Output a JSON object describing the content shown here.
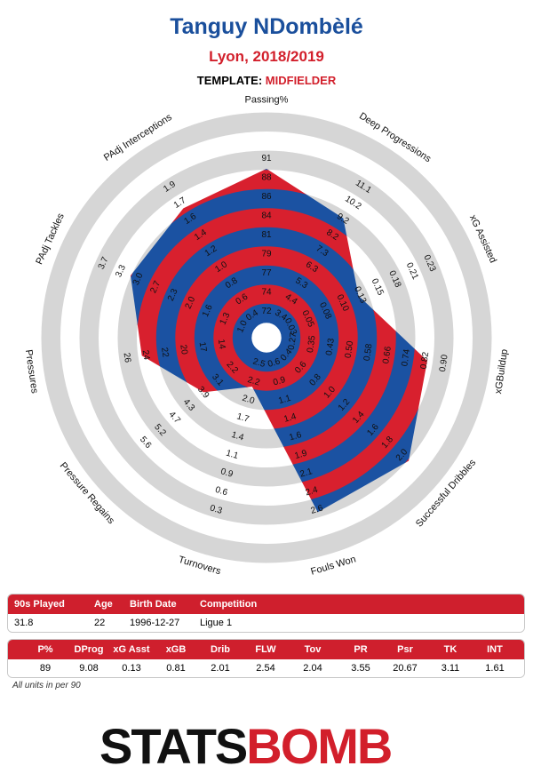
{
  "header": {
    "player_name": "Tanguy NDombèlé",
    "team_season": "Lyon, 2018/2019",
    "template_label": "TEMPLATE:",
    "template_value": "MIDFIELDER"
  },
  "chart_data": {
    "type": "radar",
    "axes": [
      {
        "name": "Passing%",
        "ticks": [
          "72",
          "74",
          "77",
          "79",
          "81",
          "84",
          "86",
          "88",
          "91"
        ],
        "value": 89,
        "range": [
          72,
          91
        ]
      },
      {
        "name": "Deep Progressions",
        "ticks": [
          "3.4",
          "4.4",
          "5.3",
          "6.3",
          "7.3",
          "8.2",
          "9.2",
          "10.2",
          "11.1"
        ],
        "value": 9.08,
        "range": [
          3.4,
          11.1
        ]
      },
      {
        "name": "xG Assisted",
        "ticks": [
          "0.03",
          "0.05",
          "0.08",
          "0.10",
          "0.13",
          "0.15",
          "0.18",
          "0.21",
          "0.23"
        ],
        "value": 0.13,
        "range": [
          0.03,
          0.23
        ]
      },
      {
        "name": "xGBuildup",
        "ticks": [
          "0.27",
          "0.35",
          "0.43",
          "0.50",
          "0.58",
          "0.66",
          "0.74",
          "0.82",
          "0.90"
        ],
        "value": 0.81,
        "range": [
          0.27,
          0.9
        ]
      },
      {
        "name": "Successful Dribbles",
        "ticks": [
          "0.4",
          "0.6",
          "0.8",
          "1.0",
          "1.2",
          "1.4",
          "1.6",
          "1.8",
          "2.0"
        ],
        "value": 2.01,
        "range": [
          0.4,
          2.0
        ]
      },
      {
        "name": "Fouls Won",
        "ticks": [
          "0.6",
          "0.9",
          "1.1",
          "1.4",
          "1.6",
          "1.9",
          "2.1",
          "2.4",
          "2.6"
        ],
        "value": 2.54,
        "range": [
          0.6,
          2.6
        ]
      },
      {
        "name": "Turnovers",
        "ticks": [
          "2.5",
          "2.2",
          "2.0",
          "1.7",
          "1.4",
          "1.1",
          "0.9",
          "0.6",
          "0.3"
        ],
        "value": 2.04,
        "range": [
          2.5,
          0.3
        ]
      },
      {
        "name": "Pressure Regains",
        "ticks": [
          "2.2",
          "3.1",
          "3.9",
          "4.3",
          "4.7",
          "5.2",
          "5.6"
        ],
        "tick_positions": [
          2,
          3,
          4,
          5,
          6,
          7,
          8
        ],
        "value": 3.55,
        "range": [
          2.2,
          5.6
        ]
      },
      {
        "name": "Pressures",
        "ticks": [
          "14",
          "17",
          "20",
          "22",
          "24",
          "26"
        ],
        "tick_positions": [
          2,
          3,
          4,
          5,
          6,
          7
        ],
        "value": 20.67,
        "range": [
          11,
          26
        ]
      },
      {
        "name": "PAdj Tackles",
        "ticks": [
          "1.0",
          "1.3",
          "1.6",
          "2.0",
          "2.3",
          "2.7",
          "3.0",
          "3.3",
          "3.7"
        ],
        "value": 3.11,
        "range": [
          1.0,
          3.7
        ]
      },
      {
        "name": "PAdj Interceptions",
        "ticks": [
          "0.4",
          "0.6",
          "0.8",
          "1.0",
          "1.2",
          "1.4",
          "1.6",
          "1.7",
          "1.9"
        ],
        "value": 1.61,
        "range": [
          0.4,
          1.9
        ]
      }
    ],
    "colors": {
      "ring_grey": "#d6d6d6",
      "fill_blue": "#1b52a2",
      "fill_red": "#d8202e"
    }
  },
  "summary": {
    "headers": [
      "90s Played",
      "Age",
      "Birth Date",
      "Competition"
    ],
    "values": [
      "31.8",
      "22",
      "1996-12-27",
      "Ligue 1"
    ]
  },
  "stats": {
    "headers": [
      "P%",
      "DProg",
      "xG Asst",
      "xGB",
      "Drib",
      "FLW",
      "Tov",
      "PR",
      "Psr",
      "TK",
      "INT"
    ],
    "values": [
      "89",
      "9.08",
      "0.13",
      "0.81",
      "2.01",
      "2.54",
      "2.04",
      "3.55",
      "20.67",
      "3.11",
      "1.61"
    ]
  },
  "footer": {
    "note": "All units in per 90",
    "logo_stats": "STATS",
    "logo_bomb": "BOMB"
  }
}
